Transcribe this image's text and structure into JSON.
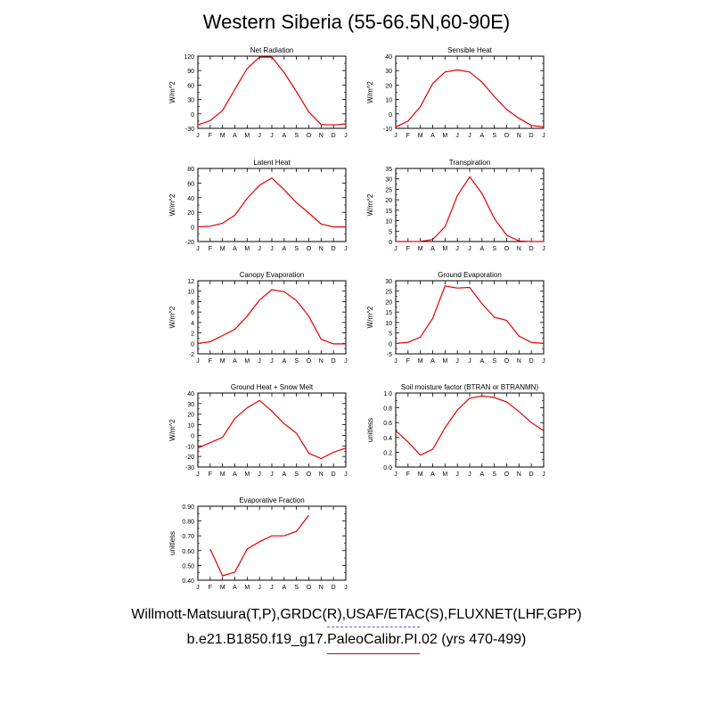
{
  "title": "Western Siberia (55-66.5N,60-90E)",
  "captions": {
    "obs": "Willmott-Matsuura(T,P),GRDC(R),USAF/ETAC(S),FLUXNET(LHF,GPP)",
    "case": "b.e21.B1850.f19_g17.PaleoCalibr.PI.02 (yrs 470-499)"
  },
  "colors": {
    "case": "#e00000",
    "obs": "#5a5aff",
    "axis": "#000000"
  },
  "chart_data": [
    {
      "type": "line",
      "title": "Net Radiation",
      "ylabel": "W/m^2",
      "categories": [
        "J",
        "F",
        "M",
        "A",
        "M",
        "J",
        "J",
        "A",
        "S",
        "O",
        "N",
        "D",
        "J"
      ],
      "ylim": [
        -30,
        120
      ],
      "yticks": [
        -30,
        0,
        30,
        60,
        90,
        120
      ],
      "series": [
        {
          "values": [
            -23,
            -14,
            7,
            51,
            94,
            118,
            118,
            86,
            46,
            4,
            -22,
            -23,
            -21
          ]
        }
      ]
    },
    {
      "type": "line",
      "title": "Sensible Heat",
      "ylabel": "W/m^2",
      "categories": [
        "J",
        "F",
        "M",
        "A",
        "M",
        "J",
        "J",
        "A",
        "S",
        "O",
        "N",
        "D",
        "J"
      ],
      "ylim": [
        -10,
        40
      ],
      "yticks": [
        -10,
        0,
        10,
        20,
        30,
        40
      ],
      "series": [
        {
          "values": [
            -9,
            -5,
            5,
            21,
            29,
            30.5,
            29,
            22,
            12,
            3,
            -3,
            -8,
            -9
          ]
        }
      ]
    },
    {
      "type": "line",
      "title": "Latent Heat",
      "ylabel": "W/m^2",
      "categories": [
        "J",
        "F",
        "M",
        "A",
        "M",
        "J",
        "J",
        "A",
        "S",
        "O",
        "N",
        "D",
        "J"
      ],
      "ylim": [
        -20,
        80
      ],
      "yticks": [
        -20,
        0,
        20,
        40,
        60,
        80
      ],
      "series": [
        {
          "values": [
            0,
            1,
            5,
            16,
            39,
            57,
            67,
            51,
            33,
            19,
            4,
            0,
            0
          ]
        }
      ]
    },
    {
      "type": "line",
      "title": "Transpiration",
      "ylabel": "W/m^2",
      "categories": [
        "J",
        "F",
        "M",
        "A",
        "M",
        "J",
        "J",
        "A",
        "S",
        "O",
        "N",
        "D",
        "J"
      ],
      "ylim": [
        0,
        35
      ],
      "yticks": [
        0,
        5,
        10,
        15,
        20,
        25,
        30,
        35
      ],
      "series": [
        {
          "values": [
            0,
            0,
            0.1,
            1,
            7,
            22,
            31,
            23,
            11,
            3,
            0.3,
            0,
            0
          ]
        }
      ]
    },
    {
      "type": "line",
      "title": "Canopy Evaporation",
      "ylabel": "W/m^2",
      "categories": [
        "J",
        "F",
        "M",
        "A",
        "M",
        "J",
        "J",
        "A",
        "S",
        "O",
        "N",
        "D",
        "J"
      ],
      "ylim": [
        -2,
        12
      ],
      "yticks": [
        -2,
        0,
        2,
        4,
        6,
        8,
        10,
        12
      ],
      "series": [
        {
          "values": [
            0,
            0.3,
            1.5,
            2.7,
            5.2,
            8.3,
            10.3,
            9.9,
            8.2,
            5.2,
            0.8,
            -0.1,
            -0.1
          ]
        }
      ]
    },
    {
      "type": "line",
      "title": "Ground Evaporation",
      "ylabel": "W/m^2",
      "categories": [
        "J",
        "F",
        "M",
        "A",
        "M",
        "J",
        "J",
        "A",
        "S",
        "O",
        "N",
        "D",
        "J"
      ],
      "ylim": [
        -5,
        30
      ],
      "yticks": [
        -5,
        0,
        5,
        10,
        15,
        20,
        25,
        30
      ],
      "series": [
        {
          "values": [
            0,
            0.5,
            3,
            12,
            27.5,
            26.5,
            26.8,
            19,
            12.5,
            11,
            3.5,
            0.5,
            0
          ]
        }
      ]
    },
    {
      "type": "line",
      "title": "Ground Heat + Snow Melt",
      "ylabel": "W/m^2",
      "categories": [
        "J",
        "F",
        "M",
        "A",
        "M",
        "J",
        "J",
        "A",
        "S",
        "O",
        "N",
        "D",
        "J"
      ],
      "ylim": [
        -30,
        40
      ],
      "yticks": [
        -30,
        -20,
        -10,
        0,
        10,
        20,
        30,
        40
      ],
      "series": [
        {
          "values": [
            -12,
            -7,
            -2,
            16,
            26,
            33,
            23,
            11,
            2,
            -17,
            -22,
            -16,
            -12
          ]
        }
      ]
    },
    {
      "type": "line",
      "title": "Soil moisture factor (BTRAN or BTRANMN)",
      "ylabel": "unitless",
      "categories": [
        "J",
        "F",
        "M",
        "A",
        "M",
        "J",
        "J",
        "A",
        "S",
        "O",
        "N",
        "D",
        "J"
      ],
      "ylim": [
        0,
        1
      ],
      "yticks": [
        "0.0",
        "0.2",
        "0.4",
        "0.6",
        "0.8",
        "1.0"
      ],
      "series": [
        {
          "values": [
            0.49,
            0.34,
            0.16,
            0.24,
            0.53,
            0.77,
            0.93,
            0.96,
            0.94,
            0.88,
            0.75,
            0.6,
            0.49
          ]
        }
      ]
    },
    {
      "type": "line",
      "title": "Evaporative Fraction",
      "ylabel": "unitless",
      "categories": [
        "J",
        "F",
        "M",
        "A",
        "M",
        "J",
        "J",
        "A",
        "S",
        "O",
        "N",
        "D",
        "J"
      ],
      "ylim": [
        0.4,
        0.9
      ],
      "yticks": [
        "0.40",
        "0.50",
        "0.60",
        "0.70",
        "0.80",
        "0.90"
      ],
      "series": [
        {
          "values": [
            null,
            0.61,
            0.43,
            0.455,
            0.61,
            0.66,
            0.7,
            0.7,
            0.73,
            0.84,
            null,
            null,
            null
          ]
        }
      ]
    }
  ]
}
